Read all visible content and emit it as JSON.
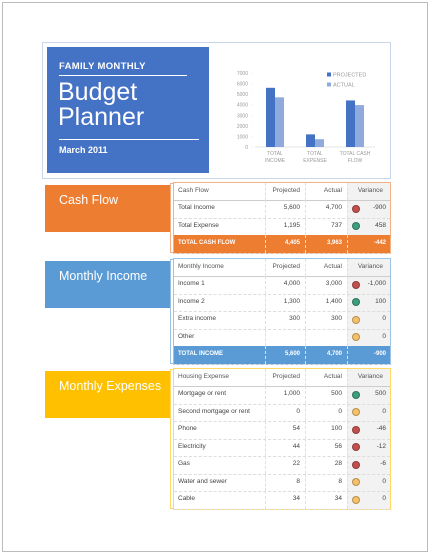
{
  "header": {
    "kicker": "FAMILY MONTHLY",
    "title": "Budget Planner",
    "date": "March 2011"
  },
  "chart_data": {
    "type": "bar",
    "categories": [
      "TOTAL INCOME",
      "TOTAL EXPENSE",
      "TOTAL CASH FLOW"
    ],
    "series": [
      {
        "name": "PROJECTED",
        "color": "#4472c4",
        "values": [
          5600,
          1195,
          4405
        ]
      },
      {
        "name": "ACTUAL",
        "color": "#8faadc",
        "values": [
          4700,
          737,
          3963
        ]
      }
    ],
    "ylim": [
      0,
      7000
    ],
    "yticks": [
      0,
      1000,
      2000,
      3000,
      4000,
      5000,
      6000,
      7000
    ],
    "legend": "upper right"
  },
  "sections": [
    {
      "label": "Cash Flow",
      "color": "#ed7d31",
      "columns": [
        "Cash Flow",
        "Projected",
        "Actual",
        "Variance"
      ],
      "rows": [
        {
          "cells": [
            "Total Income",
            "5,600",
            "4,700",
            "-900"
          ],
          "indicator": "#c0504d"
        },
        {
          "cells": [
            "Total Expense",
            "1,195",
            "737",
            "458"
          ],
          "indicator": "#3c9e7a"
        }
      ],
      "total": [
        "TOTAL CASH FLOW",
        "4,405",
        "3,963",
        "-442"
      ]
    },
    {
      "label": "Monthly Income",
      "color": "#5b9bd5",
      "columns": [
        "Monthly Income",
        "Projected",
        "Actual",
        "Variance"
      ],
      "rows": [
        {
          "cells": [
            "Income 1",
            "4,000",
            "3,000",
            "-1,000"
          ],
          "indicator": "#c0504d"
        },
        {
          "cells": [
            "Income 2",
            "1,300",
            "1,400",
            "100"
          ],
          "indicator": "#3c9e7a"
        },
        {
          "cells": [
            "Extra income",
            "300",
            "300",
            "0"
          ],
          "indicator": "#f4c06a"
        },
        {
          "cells": [
            "Other",
            null,
            null,
            "0"
          ],
          "indicator": "#f4c06a"
        }
      ],
      "total": [
        "TOTAL INCOME",
        "5,600",
        "4,700",
        "-900"
      ]
    },
    {
      "label": "Monthly Expenses",
      "color": "#ffc000",
      "columns": [
        "Housing Expense",
        "Projected",
        "Actual",
        "Variance"
      ],
      "rows": [
        {
          "cells": [
            "Mortgage or rent",
            "1,000",
            "500",
            "500"
          ],
          "indicator": "#3c9e7a"
        },
        {
          "cells": [
            "Second mortgage or rent",
            "0",
            "0",
            "0"
          ],
          "indicator": "#f4c06a"
        },
        {
          "cells": [
            "Phone",
            "54",
            "100",
            "-46"
          ],
          "indicator": "#c0504d"
        },
        {
          "cells": [
            "Electricity",
            "44",
            "56",
            "-12"
          ],
          "indicator": "#c0504d"
        },
        {
          "cells": [
            "Gas",
            "22",
            "28",
            "-6"
          ],
          "indicator": "#c0504d"
        },
        {
          "cells": [
            "Water and sewer",
            "8",
            "8",
            "0"
          ],
          "indicator": "#f4c06a"
        },
        {
          "cells": [
            "Cable",
            "34",
            "34",
            "0"
          ],
          "indicator": "#f4c06a"
        }
      ]
    }
  ]
}
